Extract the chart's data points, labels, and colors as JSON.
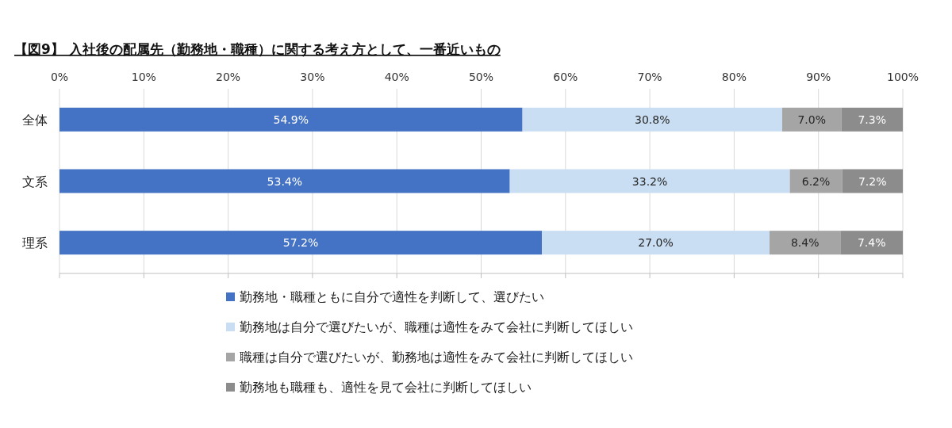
{
  "chart_data": {
    "type": "bar",
    "orientation": "horizontal",
    "stacked": true,
    "title": "【図9】 入社後の配属先（勤務地・職種）に関する考え方として、一番近いもの",
    "categories": [
      "全体",
      "文系",
      "理系"
    ],
    "series": [
      {
        "name": "勤務地・職種ともに自分で適性を判断して、選びたい",
        "color": "#4472c4",
        "values": [
          54.9,
          53.4,
          57.2
        ],
        "value_labels": [
          "54.9%",
          "53.4%",
          "57.2%"
        ]
      },
      {
        "name": "勤務地は自分で選びたいが、職種は適性をみて会社に判断してほしい",
        "color": "#c9def2",
        "values": [
          30.8,
          33.2,
          27.0
        ],
        "value_labels": [
          "30.8%",
          "33.2%",
          "27.0%"
        ]
      },
      {
        "name": "職種は自分で選びたいが、勤務地は適性をみて会社に判断してほしい",
        "color": "#a5a5a5",
        "values": [
          7.0,
          6.2,
          8.4
        ],
        "value_labels": [
          "7.0%",
          "6.2%",
          "8.4%"
        ]
      },
      {
        "name": "勤務地も職種も、適性を見て会社に判断してほしい",
        "color": "#8c8c8c",
        "values": [
          7.3,
          7.2,
          7.4
        ],
        "value_labels": [
          "7.3%",
          "7.2%",
          "7.4%"
        ]
      }
    ],
    "xlim": [
      0,
      100
    ],
    "xticks": [
      {
        "value": 0,
        "label": "0%"
      },
      {
        "value": 10,
        "label": "10%"
      },
      {
        "value": 20,
        "label": "20%"
      },
      {
        "value": 30,
        "label": "30%"
      },
      {
        "value": 40,
        "label": "40%"
      },
      {
        "value": 50,
        "label": "50%"
      },
      {
        "value": 60,
        "label": "60%"
      },
      {
        "value": 70,
        "label": "70%"
      },
      {
        "value": 80,
        "label": "80%"
      },
      {
        "value": 90,
        "label": "90%"
      },
      {
        "value": 100,
        "label": "100%"
      }
    ],
    "grid": "x",
    "legend": "bottom"
  }
}
